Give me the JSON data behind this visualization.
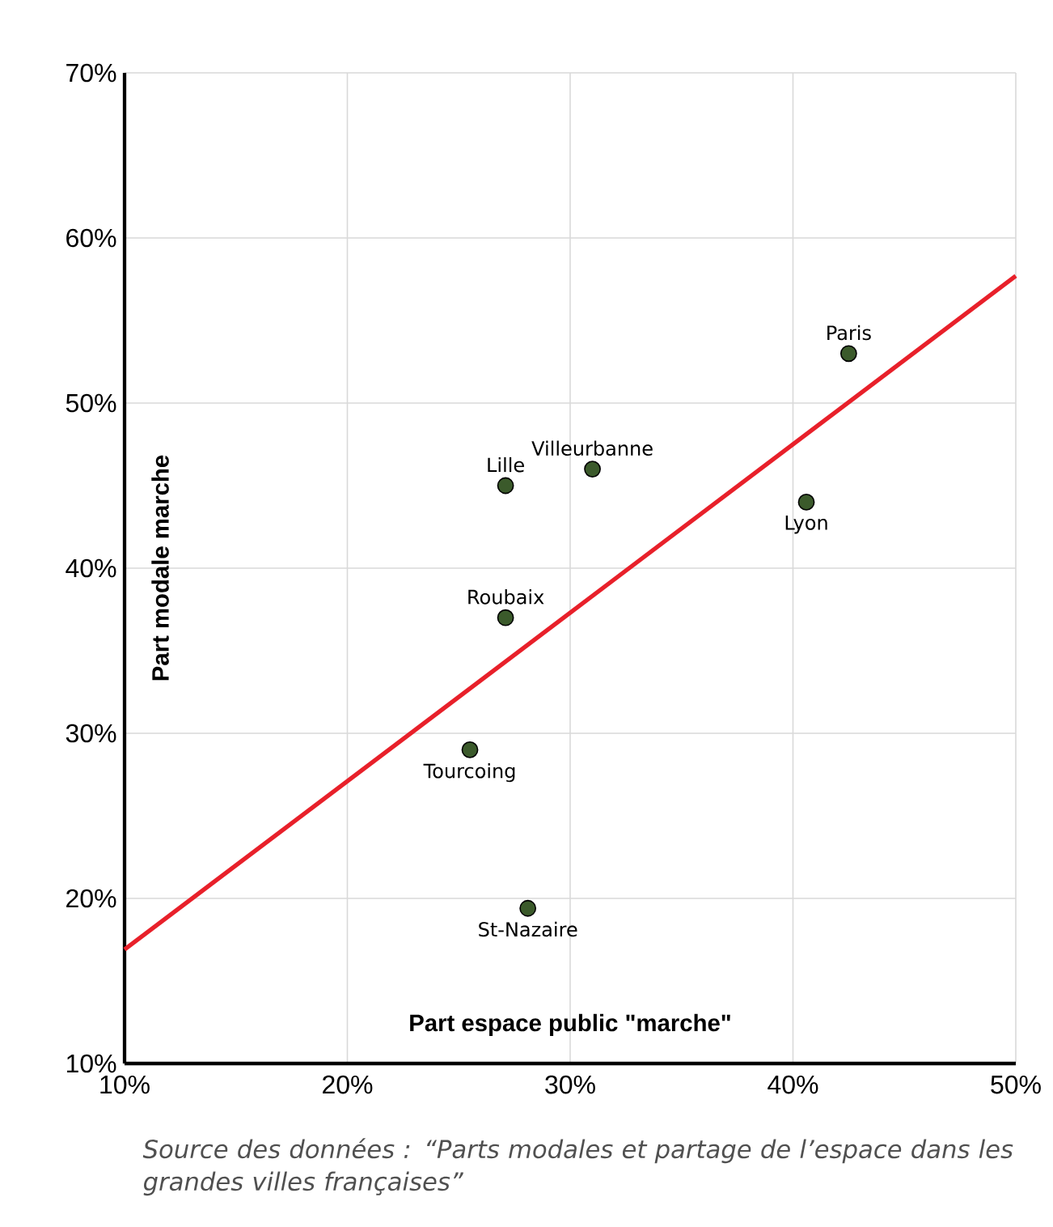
{
  "chart_data": {
    "type": "scatter",
    "xlabel": "Part espace public \"marche\"",
    "ylabel": "Part modale marche",
    "xlim": [
      10,
      50
    ],
    "ylim": [
      10,
      70
    ],
    "xticks": [
      {
        "value": 10,
        "label": "10%"
      },
      {
        "value": 20,
        "label": "20%"
      },
      {
        "value": 30,
        "label": "30%"
      },
      {
        "value": 40,
        "label": "40%"
      },
      {
        "value": 50,
        "label": "50%"
      }
    ],
    "yticks": [
      {
        "value": 10,
        "label": "10%"
      },
      {
        "value": 20,
        "label": "20%"
      },
      {
        "value": 30,
        "label": "30%"
      },
      {
        "value": 40,
        "label": "40%"
      },
      {
        "value": 50,
        "label": "50%"
      },
      {
        "value": 60,
        "label": "60%"
      },
      {
        "value": 70,
        "label": "70%"
      }
    ],
    "grid": true,
    "marker": "circle",
    "series": [
      {
        "color": "#3b5a2b",
        "x": [
          42.5,
          40.6,
          31.0,
          27.1,
          27.1,
          25.5,
          28.1
        ],
        "values": [
          53.0,
          44.0,
          46.0,
          45.0,
          37.0,
          29.0,
          19.4
        ]
      },
      {
        "type": "line",
        "marker": "none",
        "color": "#e8202a",
        "x": [
          10,
          50
        ],
        "values": [
          16.9,
          57.7
        ]
      }
    ],
    "annotations": [
      {
        "text": "Paris",
        "x": 42.5,
        "y": 53.0
      },
      {
        "text": "Lyon",
        "x": 40.6,
        "y": 44.0
      },
      {
        "text": "Villeurbanne",
        "x": 31.0,
        "y": 46.0
      },
      {
        "text": "Lille",
        "x": 27.1,
        "y": 45.0
      },
      {
        "text": "Roubaix",
        "x": 27.1,
        "y": 37.0
      },
      {
        "text": "Tourcoing",
        "x": 25.5,
        "y": 29.0
      },
      {
        "text": "St-Nazaire",
        "x": 28.1,
        "y": 19.4
      },
      "Source des données :  “Parts modales et partage de l’espace dans les grandes villes françaises”"
    ]
  }
}
